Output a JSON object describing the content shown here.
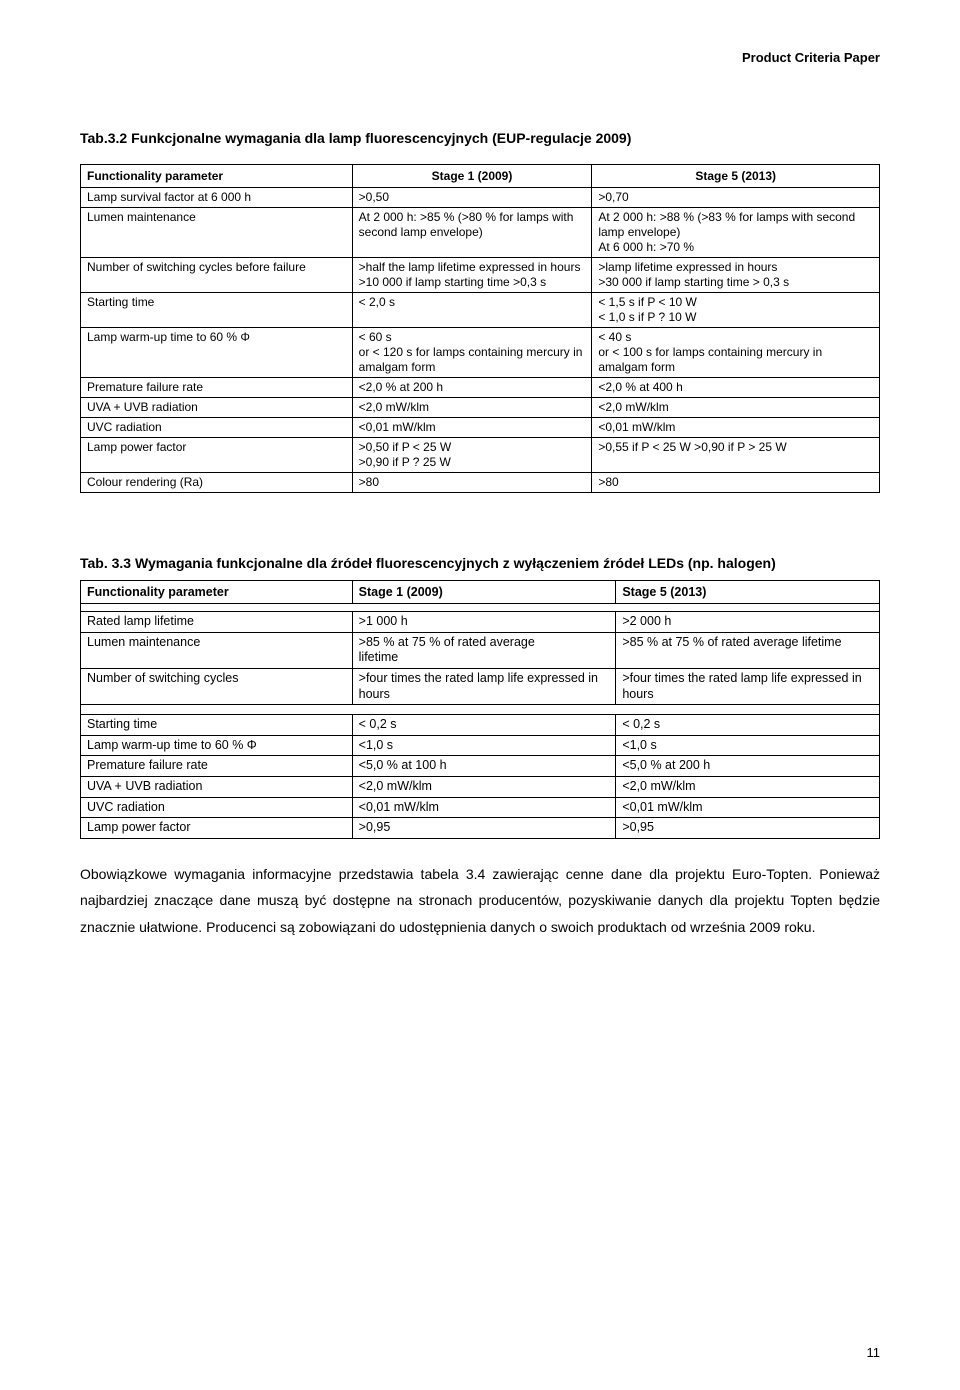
{
  "header": "Product Criteria Paper",
  "section1": {
    "title": "Tab.3.2 Funkcjonalne wymagania dla lamp fluorescencyjnych (EUP-regulacje 2009)",
    "columns": [
      "Functionality parameter",
      "Stage 1 (2009)",
      "Stage 5 (2013)"
    ],
    "rows": [
      {
        "a": "Lamp survival factor at 6 000 h",
        "b": ">0,50",
        "c": ">0,70"
      },
      {
        "a": "Lumen maintenance",
        "b": "At 2 000 h: >85 % (>80 % for lamps with second lamp envelope)",
        "c": "At 2 000 h: >88 % (>83 % for lamps with second lamp envelope)\nAt 6 000 h: >70 %"
      },
      {
        "a": "Number of switching cycles before failure",
        "b": ">half the lamp lifetime expressed in hours\n>10 000 if lamp starting time >0,3 s",
        "c": ">lamp lifetime expressed in hours\n>30 000 if lamp starting time > 0,3 s"
      },
      {
        "a": "Starting time",
        "b": "< 2,0 s",
        "c": "< 1,5 s if P < 10 W\n< 1,0 s if P ? 10 W"
      },
      {
        "a": "Lamp warm-up time to 60 % Φ",
        "b": "< 60 s\nor < 120 s for lamps containing mercury in amalgam form",
        "c": "< 40 s\nor < 100 s for lamps containing mercury in amalgam form"
      },
      {
        "a": "Premature failure rate",
        "b": "<2,0 % at 200 h",
        "c": "<2,0 % at 400 h"
      },
      {
        "a": "UVA + UVB radiation",
        "b": "<2,0 mW/klm",
        "c": "<2,0 mW/klm"
      },
      {
        "a": "UVC radiation",
        "b": "<0,01 mW/klm",
        "c": "<0,01 mW/klm"
      },
      {
        "a": "Lamp power factor",
        "b": ">0,50 if P < 25 W\n>0,90 if P ? 25 W",
        "c": ">0,55 if P < 25 W                         >0,90 if P > 25 W"
      },
      {
        "a": "Colour rendering (Ra)",
        "b": ">80",
        "c": ">80"
      }
    ]
  },
  "section2": {
    "title": "Tab. 3.3 Wymagania funkcjonalne dla źródeł fluorescencyjnych z wyłączeniem źródeł LEDs (np. halogen)",
    "columns": [
      "Functionality parameter",
      "Stage 1 (2009)",
      "Stage 5 (2013)"
    ],
    "group1": [
      {
        "a": "Rated lamp lifetime",
        "b": ">1 000 h",
        "c": ">2 000 h"
      },
      {
        "a": "Lumen maintenance",
        "b": ">85 % at 75 % of rated average\nlifetime",
        "c": ">85 % at 75 % of rated average lifetime"
      },
      {
        "a": "Number of switching cycles",
        "b": ">four times the rated lamp life expressed in hours",
        "c": ">four times the rated lamp life expressed in hours"
      }
    ],
    "group2": [
      {
        "a": "Starting time",
        "b": "< 0,2 s",
        "c": "< 0,2 s"
      },
      {
        "a": "Lamp warm-up time to 60 % Φ",
        "b": "<1,0 s",
        "c": "<1,0 s"
      },
      {
        "a": "Premature failure rate",
        "b": "<5,0 % at 100 h",
        "c": "<5,0 % at 200 h"
      },
      {
        "a": "UVA + UVB radiation",
        "b": "<2,0 mW/klm",
        "c": "<2,0 mW/klm"
      },
      {
        "a": "UVC radiation",
        "b": "<0,01 mW/klm",
        "c": "<0,01 mW/klm"
      },
      {
        "a": "Lamp power factor",
        "b": ">0,95",
        "c": ">0,95"
      }
    ]
  },
  "paragraph": "Obowiązkowe wymagania informacyjne przedstawia tabela 3.4 zawierając cenne dane dla projektu Euro-Topten. Ponieważ najbardziej znaczące dane muszą być dostępne na stronach producentów, pozyskiwanie danych dla projektu Topten będzie znacznie ułatwione. Producenci są zobowiązani do udostępnienia danych o swoich produktach od września 2009 roku.",
  "page_number": "11"
}
